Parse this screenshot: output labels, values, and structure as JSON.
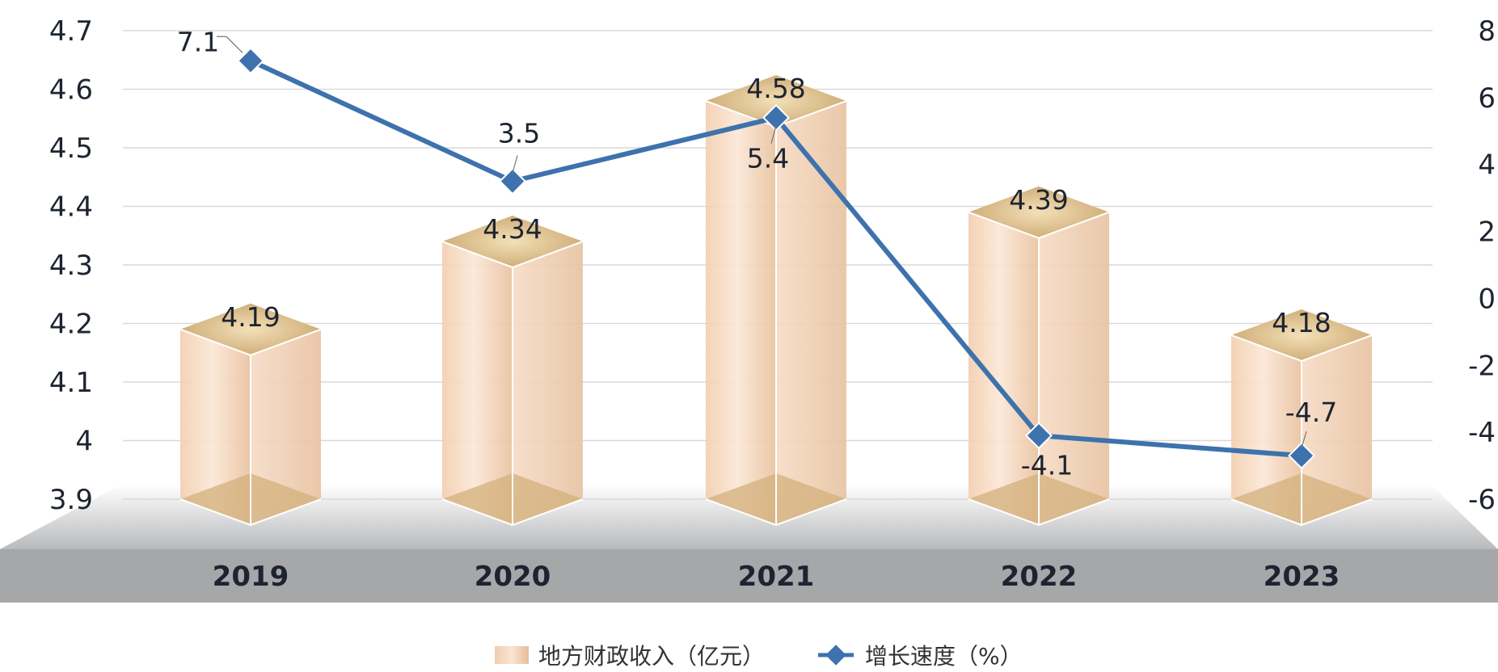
{
  "chart_data": {
    "type": "bar",
    "categories": [
      "2019",
      "2020",
      "2021",
      "2022",
      "2023"
    ],
    "series": [
      {
        "name": "地方财政收入（亿元）",
        "type": "bar",
        "axis": "left",
        "values": [
          4.19,
          4.34,
          4.58,
          4.39,
          4.18
        ],
        "labels": [
          "4.19",
          "4.34",
          "4.58",
          "4.39",
          "4.18"
        ]
      },
      {
        "name": "增长速度（%）",
        "type": "line",
        "axis": "right",
        "values": [
          7.1,
          3.5,
          5.4,
          -4.1,
          -4.7
        ],
        "labels": [
          "7.1",
          "3.5",
          "5.4",
          "-4.1",
          "-4.7"
        ]
      }
    ],
    "y_left": {
      "range": [
        3.9,
        4.7
      ],
      "ticks": [
        "4.7",
        "4.6",
        "4.5",
        "4.4",
        "4.3",
        "4.2",
        "4.1",
        "4",
        "3.9"
      ]
    },
    "y_right": {
      "range": [
        -6,
        8
      ],
      "ticks": [
        "8",
        "6",
        "4",
        "2",
        "0",
        "-2",
        "-4",
        "-6"
      ]
    },
    "grid": true,
    "legend_position": "bottom-center",
    "colors": {
      "bar_light": "#f7dcc4",
      "bar_top": "#d3b07c",
      "line": "#3d72ad",
      "floor": "#a6a7a9",
      "grid": "#d9d9d9"
    }
  }
}
